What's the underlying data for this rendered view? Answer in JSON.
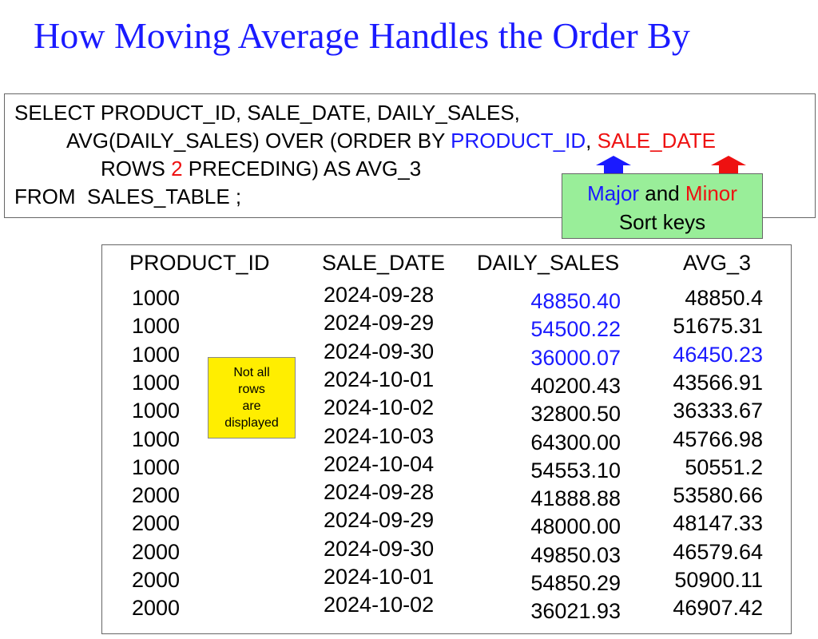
{
  "title": "How Moving Average Handles the Order By",
  "sql": [
    [
      "SELECT PRODUCT_ID, SALE_DATE, DAILY_SALES,"
    ],
    [
      "AVG(DAILY_SALES) OVER (ORDER BY ",
      "PRODUCT_ID",
      ", ",
      "SALE_DATE"
    ],
    [
      "ROWS ",
      "2",
      " PRECEDING) AS AVG_3"
    ],
    [
      "FROM  SALES_TABLE ;"
    ]
  ],
  "callout": {
    "line1": [
      "Major",
      " and ",
      "Minor"
    ],
    "line2": "Sort keys"
  },
  "note": [
    "Not all",
    "rows",
    "are",
    "displayed"
  ],
  "table": {
    "headers": [
      "PRODUCT_ID",
      "SALE_DATE",
      "DAILY_SALES",
      "AVG_3"
    ],
    "rows": [
      [
        "1000",
        "2024-09-28",
        "48850.40",
        "48850.4"
      ],
      [
        "1000",
        "2024-09-29",
        "54500.22",
        "51675.31"
      ],
      [
        "1000",
        "2024-09-30",
        "36000.07",
        "46450.23"
      ],
      [
        "1000",
        "2024-10-01",
        "40200.43",
        "43566.91"
      ],
      [
        "1000",
        "2024-10-02",
        "32800.50",
        "36333.67"
      ],
      [
        "1000",
        "2024-10-03",
        "64300.00",
        "45766.98"
      ],
      [
        "1000",
        "2024-10-04",
        "54553.10",
        "50551.2"
      ],
      [
        "2000",
        "2024-09-28",
        "41888.88",
        "53580.66"
      ],
      [
        "2000",
        "2024-09-29",
        "48000.00",
        "48147.33"
      ],
      [
        "2000",
        "2024-09-30",
        "49850.03",
        "46579.64"
      ],
      [
        "2000",
        "2024-10-01",
        "54850.29",
        "50900.11"
      ],
      [
        "2000",
        "2024-10-02",
        "36021.93",
        "46907.42"
      ]
    ]
  }
}
